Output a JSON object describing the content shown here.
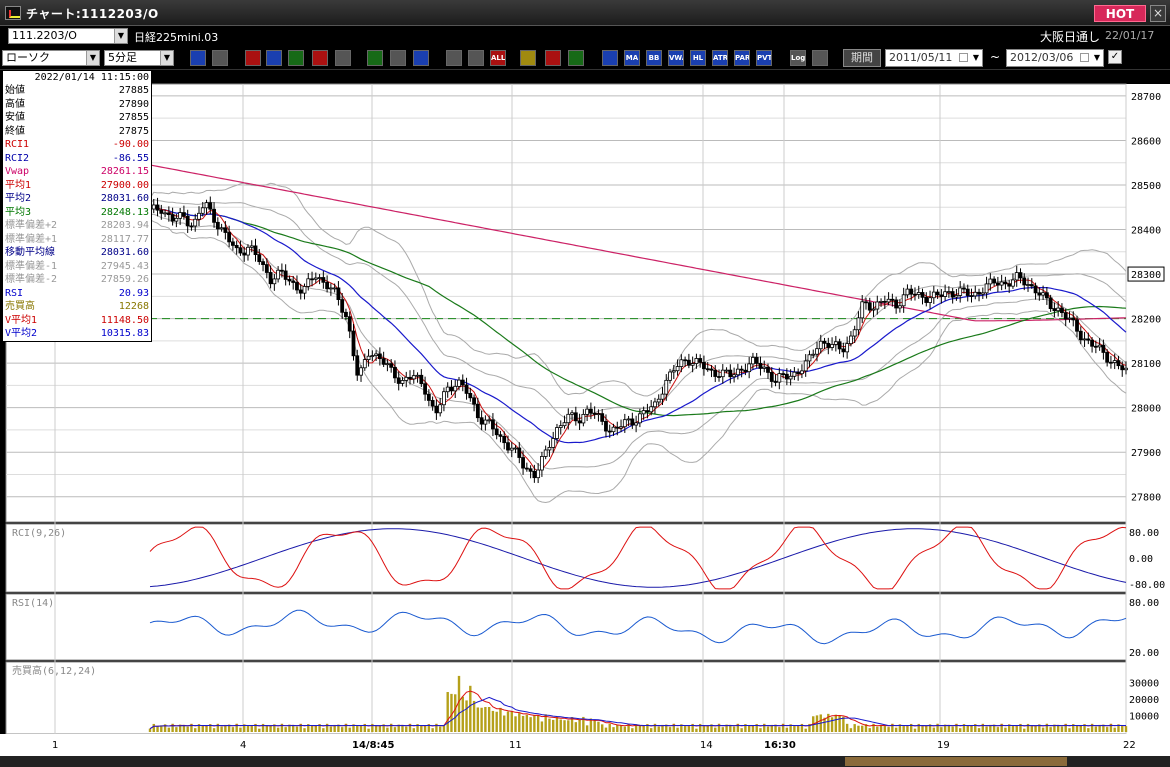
{
  "window": {
    "title": "チャート:1112203/O",
    "hot_label": "HOT",
    "close_label": "×"
  },
  "header": {
    "symbol": "111.2203/O",
    "ticker_name": "日経225mini.03",
    "session": "大阪日通し",
    "date": "22/01/17"
  },
  "toolbar": {
    "chart_type": "ローソク",
    "interval": "5分足",
    "buttons": [
      "zoom-icon",
      "crosshair-icon",
      "pan-icon",
      "magnify-icon",
      "compare-icon",
      "delete-icon",
      "lock-icon",
      "pen-icon",
      "pointer-icon",
      "undo-icon",
      "hl-icon",
      "hr-icon",
      "ALL",
      "settings-icon",
      "tools-icon",
      "palette-icon",
      "grid-icon",
      "MA",
      "BB",
      "VWAP",
      "HL",
      "ATR",
      "PAR",
      "PVT",
      "Log",
      "save-icon"
    ],
    "period_label": "期間",
    "date_from": "2011/05/11",
    "tilde": "~",
    "date_to": "2012/03/06",
    "check": "✓"
  },
  "infobox": {
    "datetime": "2022/01/14  11:15:00",
    "rows": [
      {
        "k": "始値",
        "v": "27885",
        "color": "#000000"
      },
      {
        "k": "高値",
        "v": "27890",
        "color": "#000000"
      },
      {
        "k": "安値",
        "v": "27855",
        "color": "#000000"
      },
      {
        "k": "終値",
        "v": "27875",
        "color": "#000000"
      },
      {
        "k": "RCI1",
        "v": "-90.00",
        "color": "#cc0000"
      },
      {
        "k": "RCI2",
        "v": "-86.55",
        "color": "#0000aa"
      },
      {
        "k": "Vwap",
        "v": "28261.15",
        "color": "#cc0066"
      },
      {
        "k": "平均1",
        "v": "27900.00",
        "color": "#cc0000"
      },
      {
        "k": "平均2",
        "v": "28031.60",
        "color": "#000088"
      },
      {
        "k": "平均3",
        "v": "28248.13",
        "color": "#007700"
      },
      {
        "k": "標準偏差+2",
        "v": "28203.94",
        "color": "#999999"
      },
      {
        "k": "標準偏差+1",
        "v": "28117.77",
        "color": "#999999"
      },
      {
        "k": "移動平均線",
        "v": "28031.60",
        "color": "#000088"
      },
      {
        "k": "標準偏差-1",
        "v": "27945.43",
        "color": "#999999"
      },
      {
        "k": "標準偏差-2",
        "v": "27859.26",
        "color": "#999999"
      },
      {
        "k": "RSI",
        "v": "20.93",
        "color": "#0000cc"
      },
      {
        "k": "売買高",
        "v": "12268",
        "color": "#887700"
      },
      {
        "k": "V平均1",
        "v": "11148.50",
        "color": "#cc0000"
      },
      {
        "k": "V平均2",
        "v": "10315.83",
        "color": "#0000cc"
      }
    ]
  },
  "chart_data": [
    {
      "type": "candlestick",
      "title": "",
      "ylim": [
        27750,
        28720
      ],
      "y_ticks": [
        "28700",
        "28600",
        "28500",
        "28400",
        "28300",
        "28200",
        "28100",
        "28000",
        "27900",
        "27800"
      ],
      "current_price_label": "28300",
      "reference_level": 28200,
      "x_tick_labels": [
        "1",
        "4",
        "14/8:45",
        "11",
        "14",
        "16:30",
        "19",
        "22"
      ],
      "close_path": [
        28440,
        28450,
        28420,
        28430,
        28410,
        28460,
        28420,
        28380,
        28350,
        28360,
        28330,
        28290,
        28300,
        28280,
        28260,
        28300,
        28280,
        28250,
        28200,
        28060,
        28130,
        28110,
        28080,
        28060,
        28070,
        28050,
        27980,
        28040,
        28060,
        28030,
        27980,
        27960,
        27930,
        27910,
        27870,
        27850,
        27890,
        27950,
        27980,
        27970,
        28000,
        27970,
        27950,
        27960,
        27970,
        27990,
        28000,
        28060,
        28090,
        28110,
        28100,
        28080,
        28080,
        28070,
        28090,
        28100,
        28090,
        28060,
        28070,
        28080,
        28100,
        28150,
        28140,
        28130,
        28160,
        28230,
        28230,
        28240,
        28230,
        28260,
        28250,
        28250,
        28250,
        28260,
        28260,
        28250,
        28270,
        28280,
        28280,
        28290,
        28280,
        28260,
        28230,
        28220,
        28190,
        28160,
        28140,
        28120,
        28100,
        28080
      ]
    },
    {
      "type": "line",
      "title": "RCI(9,26)",
      "y_ticks": [
        "80.00",
        "0.00",
        "-80.00"
      ]
    },
    {
      "type": "line",
      "title": "RSI(14)",
      "y_ticks": [
        "80.00",
        "20.00"
      ]
    },
    {
      "type": "bar",
      "title": "売買高(6,12,24)",
      "y_ticks": [
        "30000",
        "20000",
        "10000"
      ]
    }
  ]
}
